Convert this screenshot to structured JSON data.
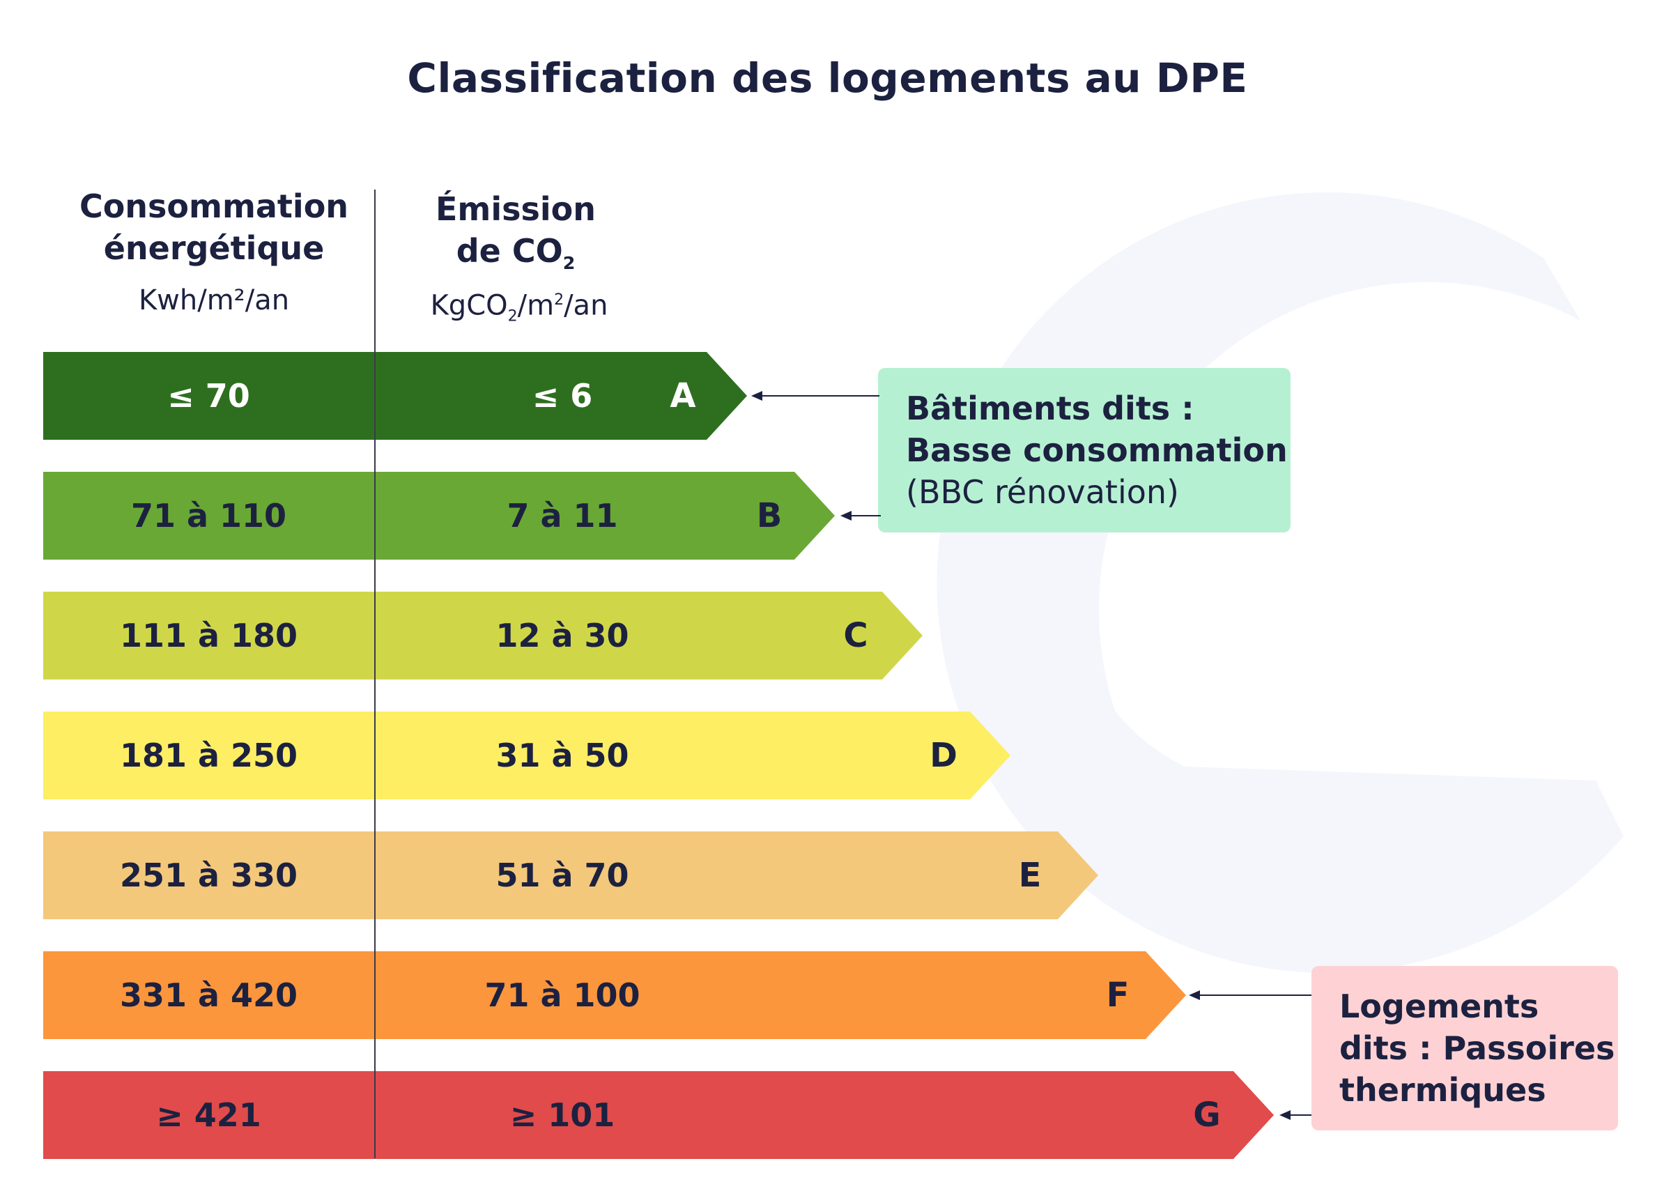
{
  "title": "Classification des logements au DPE",
  "columns": {
    "energy": {
      "heading_line1": "Consommation",
      "heading_line2": "énergétique",
      "unit": "Kwh/m²/an"
    },
    "co2": {
      "heading_line1": "Émission",
      "heading_line2_prefix": "de CO",
      "heading_line2_sub": "2",
      "unit_prefix": "KgCO",
      "unit_sub": "2",
      "unit_mid": "/m",
      "unit_sup": "2",
      "unit_suffix": "/an"
    }
  },
  "classes": [
    {
      "letter": "A",
      "energy": "≤ 70",
      "co2": "≤ 6",
      "color": "#2e6f1f",
      "text_color": "#ffffff"
    },
    {
      "letter": "B",
      "energy": "71 à 110",
      "co2": "7 à 11",
      "color": "#69a834",
      "text_color": "#1c2140"
    },
    {
      "letter": "C",
      "energy": "111 à 180",
      "co2": "12 à 30",
      "color": "#cfd749",
      "text_color": "#1c2140"
    },
    {
      "letter": "D",
      "energy": "181 à 250",
      "co2": "31 à 50",
      "color": "#fdee64",
      "text_color": "#1c2140"
    },
    {
      "letter": "E",
      "energy": "251 à 330",
      "co2": "51 à 70",
      "color": "#f4c87a",
      "text_color": "#1c2140"
    },
    {
      "letter": "F",
      "energy": "331 à 420",
      "co2": "71 à 100",
      "color": "#fc963c",
      "text_color": "#1c2140"
    },
    {
      "letter": "G",
      "energy": "≥ 421",
      "co2": "≥ 101",
      "color": "#e14b4b",
      "text_color": "#1c2140"
    }
  ],
  "callouts": {
    "bbc": {
      "line1": "Bâtiments dits :",
      "line2": "Basse consommation",
      "line3": "(BBC rénovation)",
      "bg_color": "#b6f0d2"
    },
    "passoires": {
      "line1": "Logements",
      "line2": "dits : Passoires",
      "line3": "thermiques",
      "bg_color": "#fed2d4"
    }
  },
  "background_logo_color": "#f4f6fc"
}
